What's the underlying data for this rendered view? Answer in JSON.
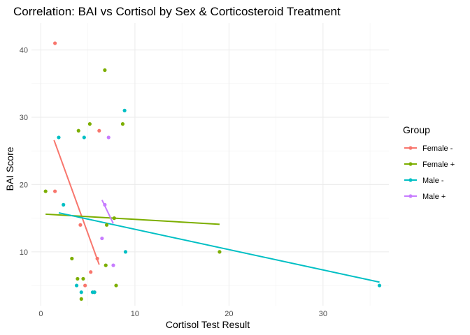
{
  "chart_data": {
    "type": "scatter",
    "title": "Correlation: BAI vs Cortisol by Sex & Corticosteroid Treatment",
    "xlabel": "Cortisol Test Result",
    "ylabel": "BAI Score",
    "xlim": [
      -1,
      37
    ],
    "ylim": [
      2,
      44
    ],
    "x_ticks": [
      0,
      10,
      20,
      30
    ],
    "y_ticks": [
      10,
      20,
      30,
      40
    ],
    "grid": true,
    "legend": {
      "title": "Group",
      "position": "right"
    },
    "series": [
      {
        "name": "Female -",
        "color": "#F8766D",
        "points": [
          [
            1.5,
            41
          ],
          [
            1.5,
            19
          ],
          [
            4.2,
            14
          ],
          [
            4.7,
            5
          ],
          [
            5.3,
            7
          ],
          [
            5.7,
            4
          ],
          [
            6.0,
            9
          ],
          [
            6.2,
            28
          ]
        ],
        "fit": [
          [
            1.4,
            26.6
          ],
          [
            6.2,
            8.1
          ]
        ]
      },
      {
        "name": "Female +",
        "color": "#7CAE00",
        "points": [
          [
            0.5,
            19
          ],
          [
            3.3,
            9
          ],
          [
            3.9,
            6
          ],
          [
            4.0,
            28
          ],
          [
            4.3,
            3
          ],
          [
            4.5,
            6
          ],
          [
            5.2,
            29
          ],
          [
            6.8,
            37
          ],
          [
            6.9,
            8
          ],
          [
            7.0,
            14
          ],
          [
            7.8,
            15
          ],
          [
            8.0,
            5
          ],
          [
            8.7,
            29
          ],
          [
            19.0,
            10
          ]
        ],
        "fit": [
          [
            0.5,
            15.6
          ],
          [
            19.0,
            14.1
          ]
        ]
      },
      {
        "name": "Male -",
        "color": "#00BFC4",
        "points": [
          [
            1.9,
            27
          ],
          [
            2.4,
            17
          ],
          [
            3.8,
            5
          ],
          [
            4.3,
            4
          ],
          [
            4.6,
            27
          ],
          [
            5.5,
            4
          ],
          [
            5.7,
            4
          ],
          [
            8.9,
            31
          ],
          [
            9.0,
            10
          ],
          [
            36.0,
            5
          ]
        ],
        "fit": [
          [
            1.9,
            15.8
          ],
          [
            36.0,
            5.5
          ]
        ]
      },
      {
        "name": "Male +",
        "color": "#C77CFF",
        "points": [
          [
            6.5,
            12
          ],
          [
            6.8,
            17
          ],
          [
            7.2,
            27
          ],
          [
            7.7,
            8
          ]
        ],
        "fit": [
          [
            6.5,
            17.7
          ],
          [
            7.7,
            14.2
          ]
        ]
      }
    ]
  }
}
